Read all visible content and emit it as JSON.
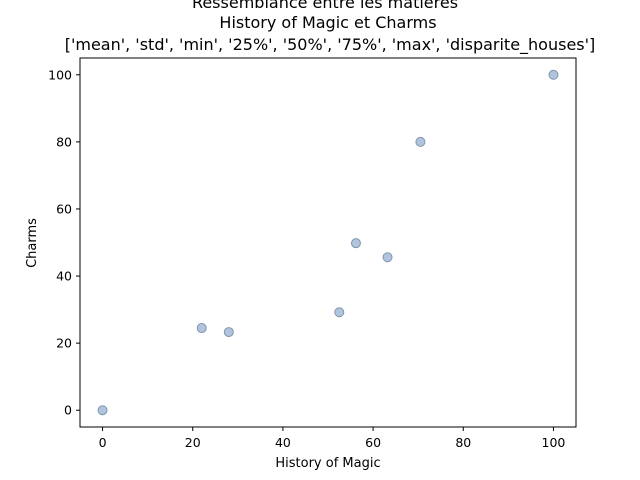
{
  "chart_data": {
    "type": "scatter",
    "title_lines": [
      "Ressemblance entre les matieres",
      "History of Magic et Charms",
      "['mean', 'std', 'min', '25%', '50%', '75%', 'max', 'disparite_houses']"
    ],
    "xlabel": "History of Magic",
    "ylabel": "Charms",
    "xlim": [
      -5,
      105
    ],
    "ylim": [
      -5,
      105
    ],
    "x_ticks": [
      0,
      20,
      40,
      60,
      80,
      100
    ],
    "y_ticks": [
      0,
      20,
      40,
      60,
      80,
      100
    ],
    "grid": false,
    "points": [
      {
        "x": 0,
        "y": 0
      },
      {
        "x": 22,
        "y": 24.5
      },
      {
        "x": 28,
        "y": 23.3
      },
      {
        "x": 52.5,
        "y": 29.2
      },
      {
        "x": 56.2,
        "y": 49.8
      },
      {
        "x": 63.2,
        "y": 45.6
      },
      {
        "x": 70.5,
        "y": 80
      },
      {
        "x": 100,
        "y": 100
      }
    ],
    "marker_fill": "#b0c4de",
    "marker_stroke": "#7f95ad"
  }
}
